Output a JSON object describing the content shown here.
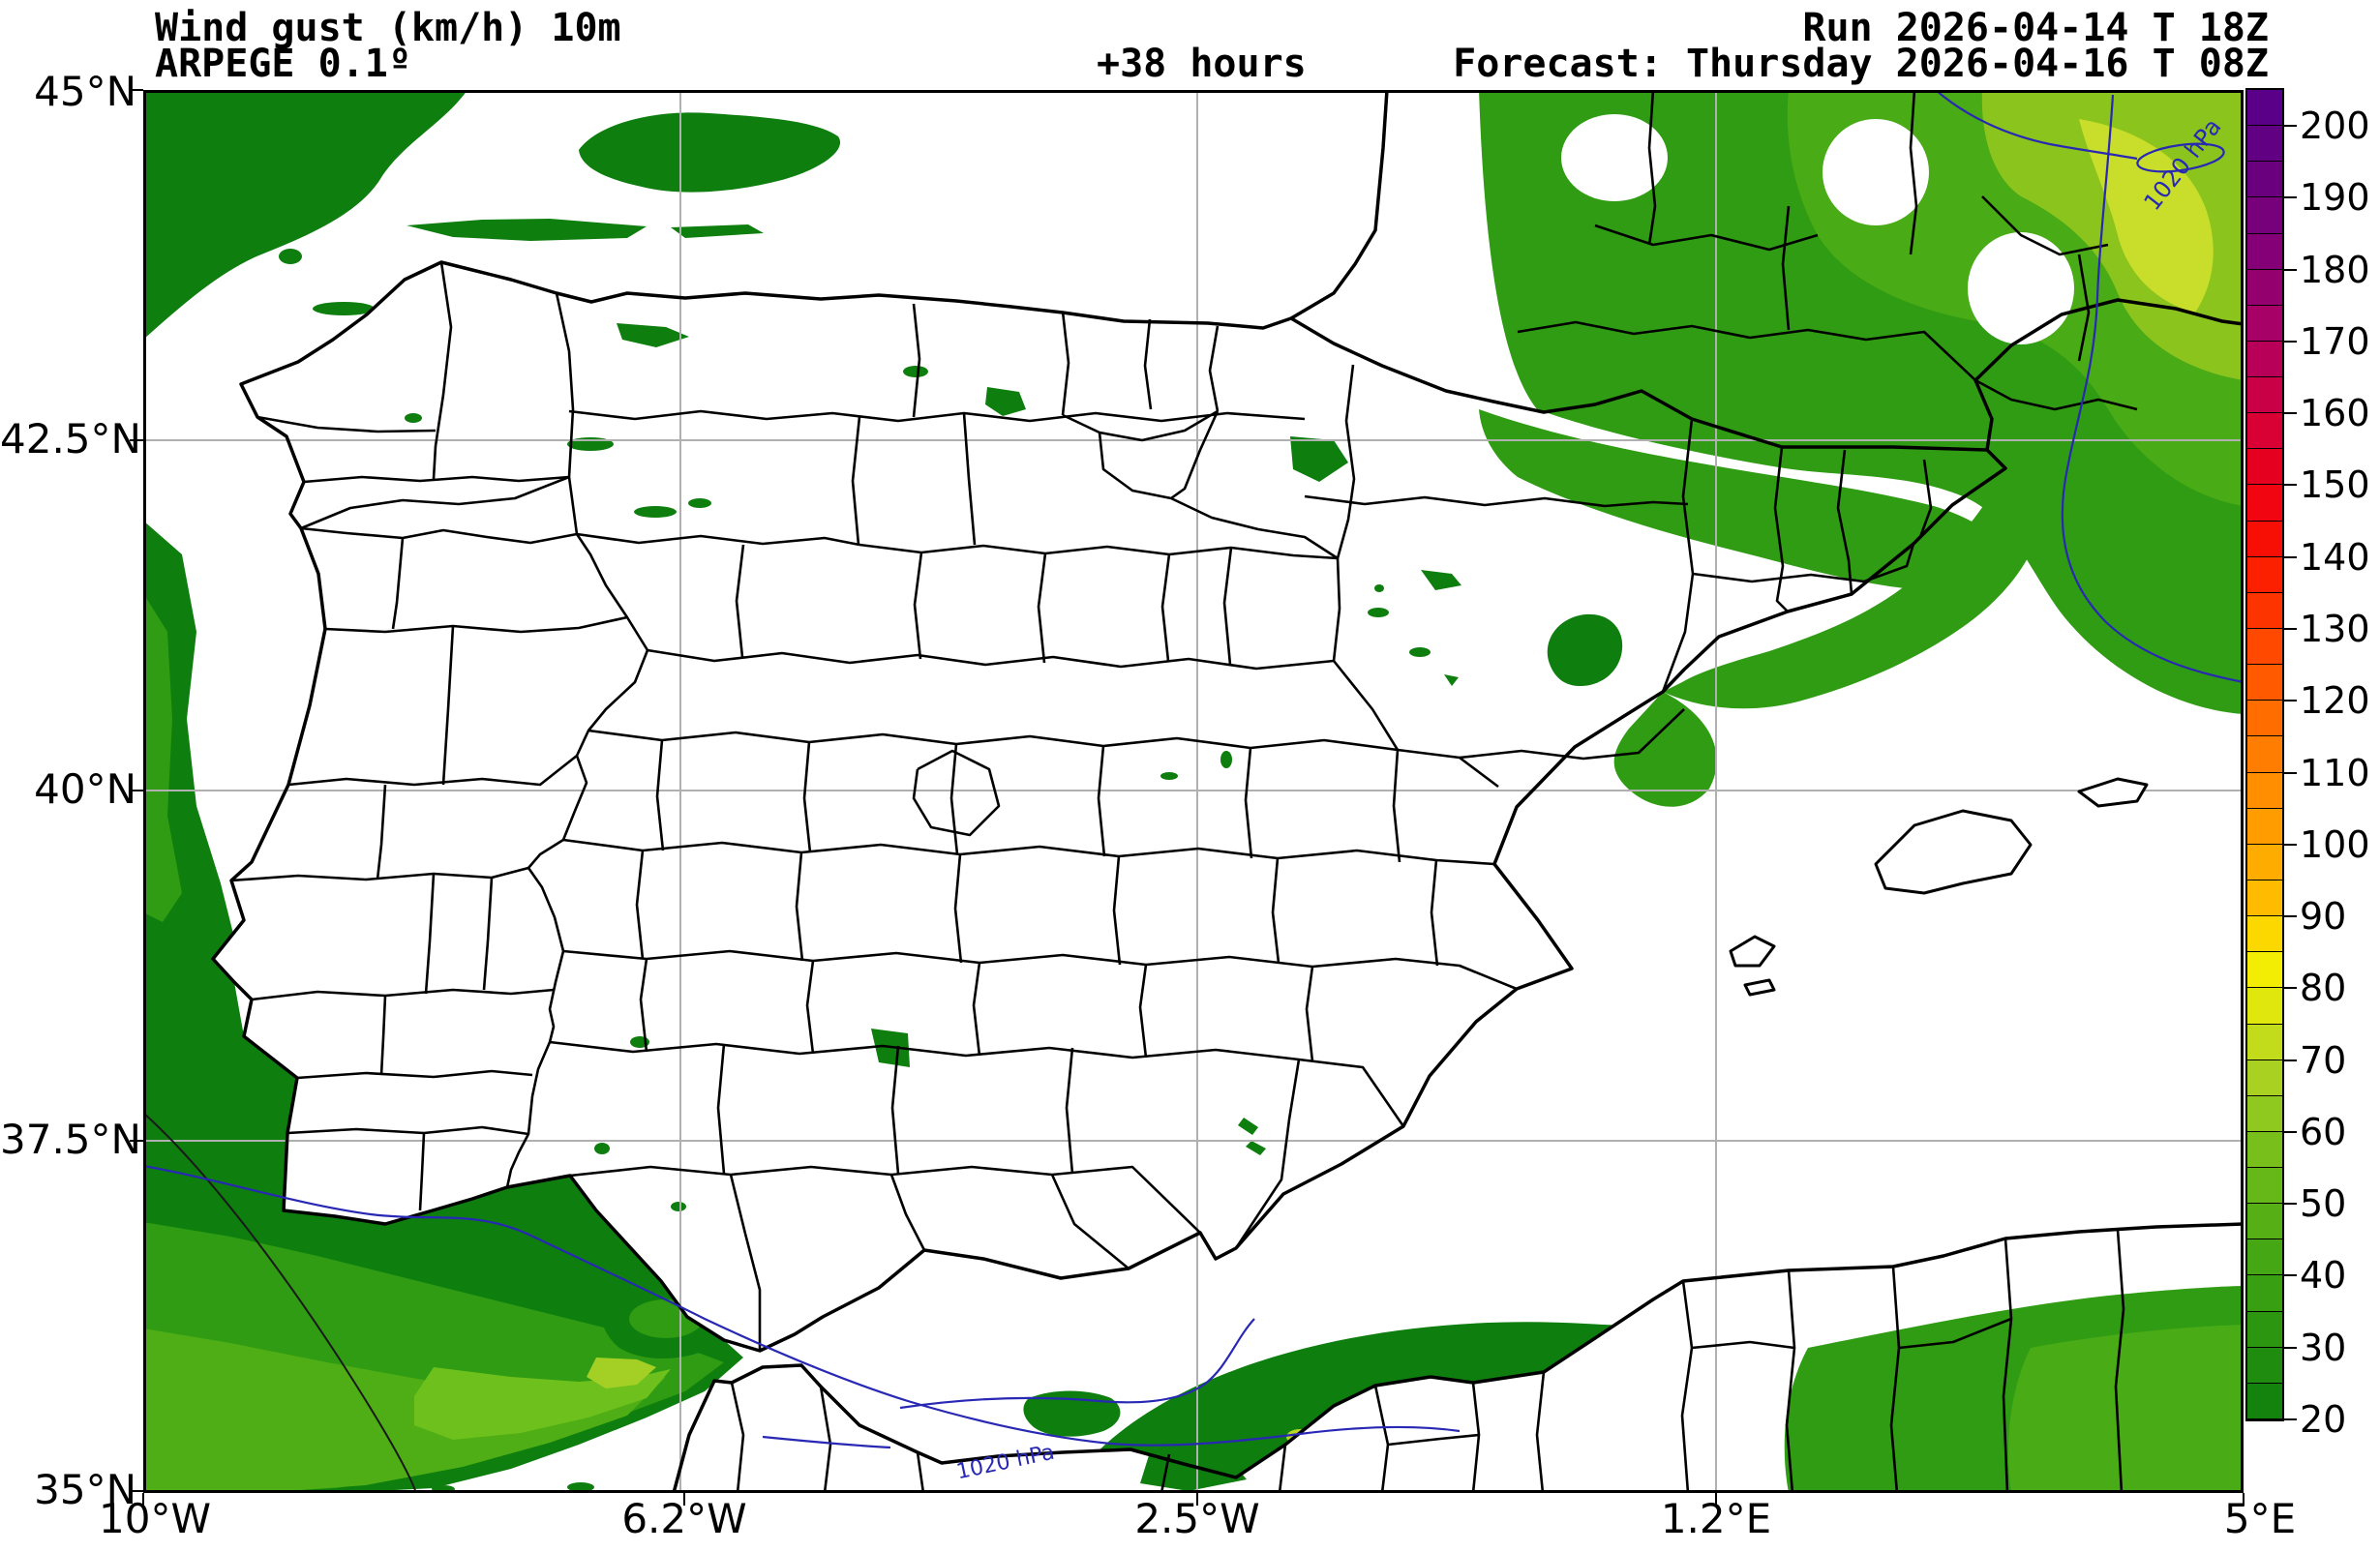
{
  "header": {
    "product": "Wind gust (km/h) 10m",
    "model": "ARPEGE 0.1º",
    "lead": "+38 hours",
    "run": "Run 2026-04-14 T 18Z",
    "valid": "Forecast: Thursday 2026-04-16 T 08Z"
  },
  "axes": {
    "lat_labels": [
      "45°N",
      "42.5°N",
      "40°N",
      "37.5°N",
      "35°N"
    ],
    "lon_labels": [
      "10°W",
      "6.2°W",
      "2.5°W",
      "1.2°E",
      "5°E"
    ]
  },
  "colorbar": {
    "min": 20,
    "max": 205,
    "step": 5,
    "tick_values": [
      20,
      30,
      40,
      50,
      60,
      70,
      80,
      90,
      100,
      110,
      120,
      130,
      140,
      150,
      160,
      170,
      180,
      190,
      200
    ],
    "stops": [
      [
        20,
        "#0d7e0d"
      ],
      [
        30,
        "#259110"
      ],
      [
        40,
        "#3fa313"
      ],
      [
        50,
        "#5cb316"
      ],
      [
        60,
        "#83c31c"
      ],
      [
        70,
        "#b4d522"
      ],
      [
        80,
        "#eded06"
      ],
      [
        85,
        "#f9ea00"
      ],
      [
        90,
        "#fec300"
      ],
      [
        100,
        "#ffa400"
      ],
      [
        110,
        "#ff8600"
      ],
      [
        120,
        "#ff6300"
      ],
      [
        130,
        "#ff3f00"
      ],
      [
        140,
        "#fb1400"
      ],
      [
        150,
        "#ec0015"
      ],
      [
        160,
        "#d2003e"
      ],
      [
        170,
        "#b00062"
      ],
      [
        180,
        "#8c0073"
      ],
      [
        190,
        "#70007d"
      ],
      [
        200,
        "#5d0086"
      ],
      [
        205,
        "#570089"
      ]
    ]
  },
  "isobar_labels": [
    {
      "text": "1020 hPa"
    },
    {
      "text": "1020 hPa"
    }
  ],
  "colors": {
    "isobar_blue": "#2828b4",
    "grid_gray": "#b0b0b0",
    "gust_green_low": "#0e7e0e"
  }
}
